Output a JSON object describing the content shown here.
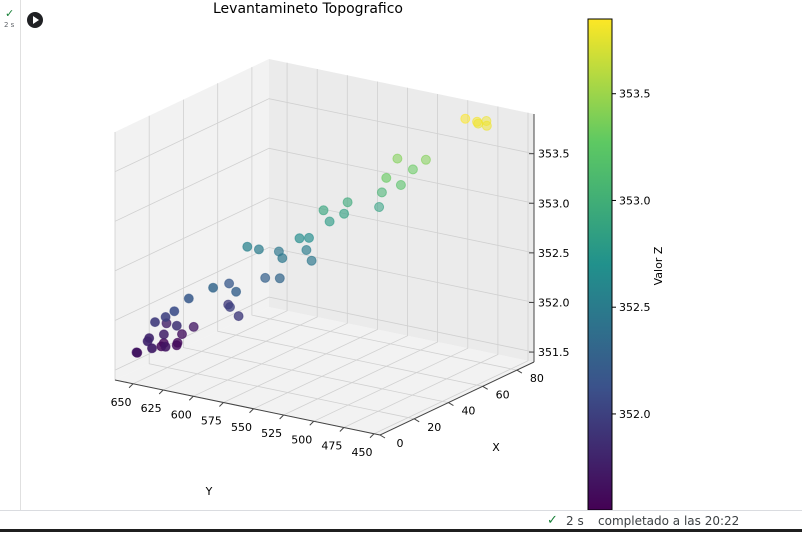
{
  "cell": {
    "exec_time": "2 s"
  },
  "status_bar": {
    "time": "2 s",
    "message": "completado a las 20:22"
  },
  "icons": {
    "run": "play-circle-icon",
    "check": "check-icon"
  },
  "colors": {
    "viridis": [
      "#440154",
      "#3b528b",
      "#21918c",
      "#5ec962",
      "#fde725"
    ]
  },
  "chart_data": {
    "type": "scatter3d",
    "title": "Levantamineto Topografico",
    "xlabel": "X",
    "ylabel": "Y",
    "zlabel": "",
    "colorbar_label": "Valor Z",
    "colormap": "viridis",
    "xlim": [
      0,
      90
    ],
    "ylim": [
      445,
      665
    ],
    "zlim": [
      351.4,
      353.9
    ],
    "x_ticks": [
      0,
      20,
      40,
      60,
      80
    ],
    "y_ticks": [
      450,
      475,
      500,
      525,
      550,
      575,
      600,
      625,
      650
    ],
    "z_ticks": [
      351.5,
      352.0,
      352.5,
      353.0,
      353.5
    ],
    "colorbar_range": [
      351.55,
      353.85
    ],
    "colorbar_ticks": [
      352.0,
      352.5,
      353.0,
      353.5
    ],
    "grid": true,
    "points": [
      {
        "x": 80,
        "y": 470,
        "z": 353.8
      },
      {
        "x": 80,
        "y": 478,
        "z": 353.82
      },
      {
        "x": 82,
        "y": 480,
        "z": 353.78
      },
      {
        "x": 78,
        "y": 485,
        "z": 353.85
      },
      {
        "x": 84,
        "y": 476,
        "z": 353.8
      },
      {
        "x": 72,
        "y": 520,
        "z": 353.3
      },
      {
        "x": 74,
        "y": 512,
        "z": 353.4
      },
      {
        "x": 65,
        "y": 520,
        "z": 353.2
      },
      {
        "x": 60,
        "y": 525,
        "z": 353.3
      },
      {
        "x": 68,
        "y": 540,
        "z": 353.05
      },
      {
        "x": 72,
        "y": 548,
        "z": 352.85
      },
      {
        "x": 70,
        "y": 530,
        "z": 353.4
      },
      {
        "x": 62,
        "y": 560,
        "z": 352.95
      },
      {
        "x": 55,
        "y": 570,
        "z": 352.9
      },
      {
        "x": 48,
        "y": 580,
        "z": 352.65
      },
      {
        "x": 45,
        "y": 590,
        "z": 352.45
      },
      {
        "x": 50,
        "y": 600,
        "z": 352.45
      },
      {
        "x": 44,
        "y": 608,
        "z": 352.5
      },
      {
        "x": 40,
        "y": 612,
        "z": 352.55
      },
      {
        "x": 35,
        "y": 620,
        "z": 352.2
      },
      {
        "x": 25,
        "y": 600,
        "z": 352.25
      },
      {
        "x": 20,
        "y": 612,
        "z": 352.3
      },
      {
        "x": 15,
        "y": 625,
        "z": 352.2
      },
      {
        "x": 10,
        "y": 630,
        "z": 352.1
      },
      {
        "x": 12,
        "y": 640,
        "z": 352.0
      },
      {
        "x": 5,
        "y": 645,
        "z": 351.8
      },
      {
        "x": 2,
        "y": 650,
        "z": 351.7
      },
      {
        "x": 6,
        "y": 655,
        "z": 351.65
      },
      {
        "x": 8,
        "y": 648,
        "z": 351.8
      },
      {
        "x": 4,
        "y": 640,
        "z": 351.75
      },
      {
        "x": 10,
        "y": 646,
        "z": 351.95
      },
      {
        "x": 12,
        "y": 640,
        "z": 351.7
      },
      {
        "x": 18,
        "y": 650,
        "z": 351.75
      },
      {
        "x": 22,
        "y": 645,
        "z": 351.62
      },
      {
        "x": 26,
        "y": 650,
        "z": 351.6
      },
      {
        "x": 25,
        "y": 660,
        "z": 351.58
      },
      {
        "x": 30,
        "y": 652,
        "z": 351.65
      },
      {
        "x": 34,
        "y": 648,
        "z": 351.7
      },
      {
        "x": 20,
        "y": 655,
        "z": 351.6
      },
      {
        "x": 28,
        "y": 662,
        "z": 351.75
      },
      {
        "x": 48,
        "y": 570,
        "z": 352.45
      },
      {
        "x": 55,
        "y": 565,
        "z": 352.8
      },
      {
        "x": 60,
        "y": 560,
        "z": 352.85
      },
      {
        "x": 50,
        "y": 575,
        "z": 352.65
      },
      {
        "x": 52,
        "y": 580,
        "z": 352.5
      },
      {
        "x": 40,
        "y": 585,
        "z": 352.3
      },
      {
        "x": 42,
        "y": 600,
        "z": 352.25
      },
      {
        "x": 30,
        "y": 605,
        "z": 351.95
      },
      {
        "x": 38,
        "y": 625,
        "z": 351.95
      },
      {
        "x": 32,
        "y": 615,
        "z": 352.0
      },
      {
        "x": 15,
        "y": 635,
        "z": 351.9
      }
    ]
  }
}
